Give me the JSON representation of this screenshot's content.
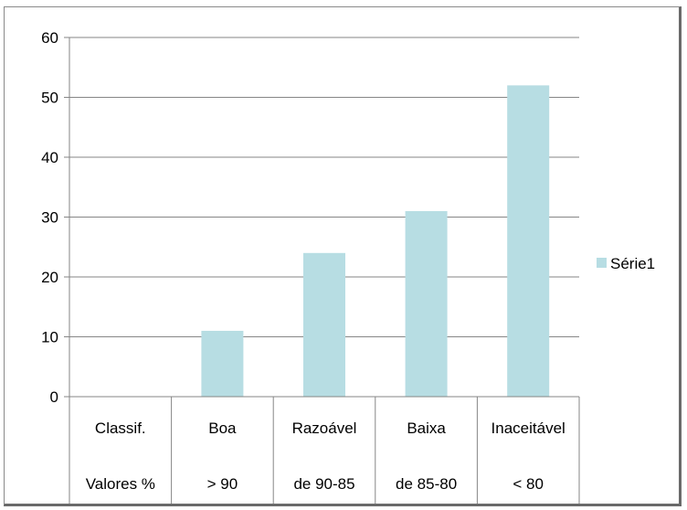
{
  "chart_data": {
    "type": "bar",
    "categories": [
      "Classif.",
      "Boa",
      "Razoável",
      "Baixa",
      "Inaceitável"
    ],
    "category_sublabels": [
      "Valores %",
      "> 90",
      "de 90-85",
      "de 85-80",
      "< 80"
    ],
    "series": [
      {
        "name": "Série1",
        "values": [
          0,
          11,
          24,
          31,
          52
        ]
      }
    ],
    "ylim": [
      0,
      60
    ],
    "yticks": [
      0,
      10,
      20,
      30,
      40,
      50,
      60
    ],
    "grid": true,
    "legend_position": "right",
    "colors": {
      "bar": "#b7dde3",
      "grid": "#868686",
      "axis": "#868686"
    }
  }
}
